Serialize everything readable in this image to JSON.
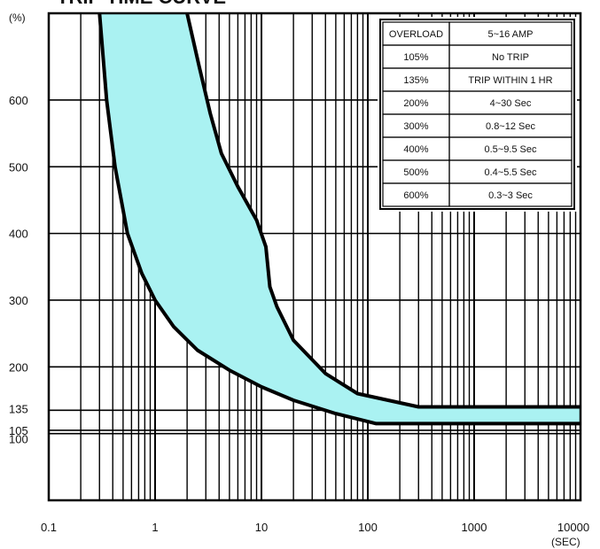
{
  "chart_data": {
    "type": "area",
    "title": "TRIP TIME CURVE",
    "xlabel": "",
    "ylabel": "",
    "x_unit": "(SEC)",
    "y_unit": "(%)",
    "xscale": "log",
    "xlim": [
      0.1,
      10000
    ],
    "ylim": [
      0,
      730
    ],
    "grid": true,
    "x_ticks": [
      {
        "value": 0.1,
        "label": "0.1"
      },
      {
        "value": 1,
        "label": "1"
      },
      {
        "value": 10,
        "label": "10"
      },
      {
        "value": 100,
        "label": "100"
      },
      {
        "value": 1000,
        "label": "1000"
      },
      {
        "value": 10000,
        "label": "10000"
      }
    ],
    "y_ticks": [
      {
        "value": 100,
        "label": "100"
      },
      {
        "value": 105,
        "label": "105"
      },
      {
        "value": 135,
        "label": "135"
      },
      {
        "value": 200,
        "label": "200"
      },
      {
        "value": 300,
        "label": "300"
      },
      {
        "value": 400,
        "label": "400"
      },
      {
        "value": 500,
        "label": "500"
      },
      {
        "value": 600,
        "label": "600"
      }
    ],
    "series": [
      {
        "role": "minimum",
        "x": [
          0.3,
          0.35,
          0.42,
          0.55,
          0.75,
          1.0,
          1.5,
          2.5,
          5,
          10,
          20,
          50,
          120,
          1000,
          10000
        ],
        "y": [
          730,
          600,
          500,
          400,
          340,
          300,
          260,
          225,
          195,
          170,
          150,
          130,
          115,
          115,
          115
        ]
      },
      {
        "role": "maximum",
        "x": [
          2.0,
          2.6,
          3.3,
          4.2,
          6,
          9,
          11,
          12,
          14,
          20,
          40,
          80,
          300,
          1000,
          10000
        ],
        "y": [
          730,
          650,
          580,
          520,
          470,
          420,
          380,
          320,
          290,
          240,
          190,
          160,
          140,
          140,
          140
        ]
      }
    ],
    "band_color": "#aaf2f2",
    "line_color": "#000000",
    "table": {
      "header": [
        "OVERLOAD",
        "5~16 AMP"
      ],
      "rows": [
        [
          "105%",
          "No TRIP"
        ],
        [
          "135%",
          "TRIP WITHIN 1 HR"
        ],
        [
          "200%",
          "4~30 Sec"
        ],
        [
          "300%",
          "0.8~12 Sec"
        ],
        [
          "400%",
          "0.5~9.5 Sec"
        ],
        [
          "500%",
          "0.4~5.5 Sec"
        ],
        [
          "600%",
          "0.3~3 Sec"
        ]
      ]
    }
  }
}
